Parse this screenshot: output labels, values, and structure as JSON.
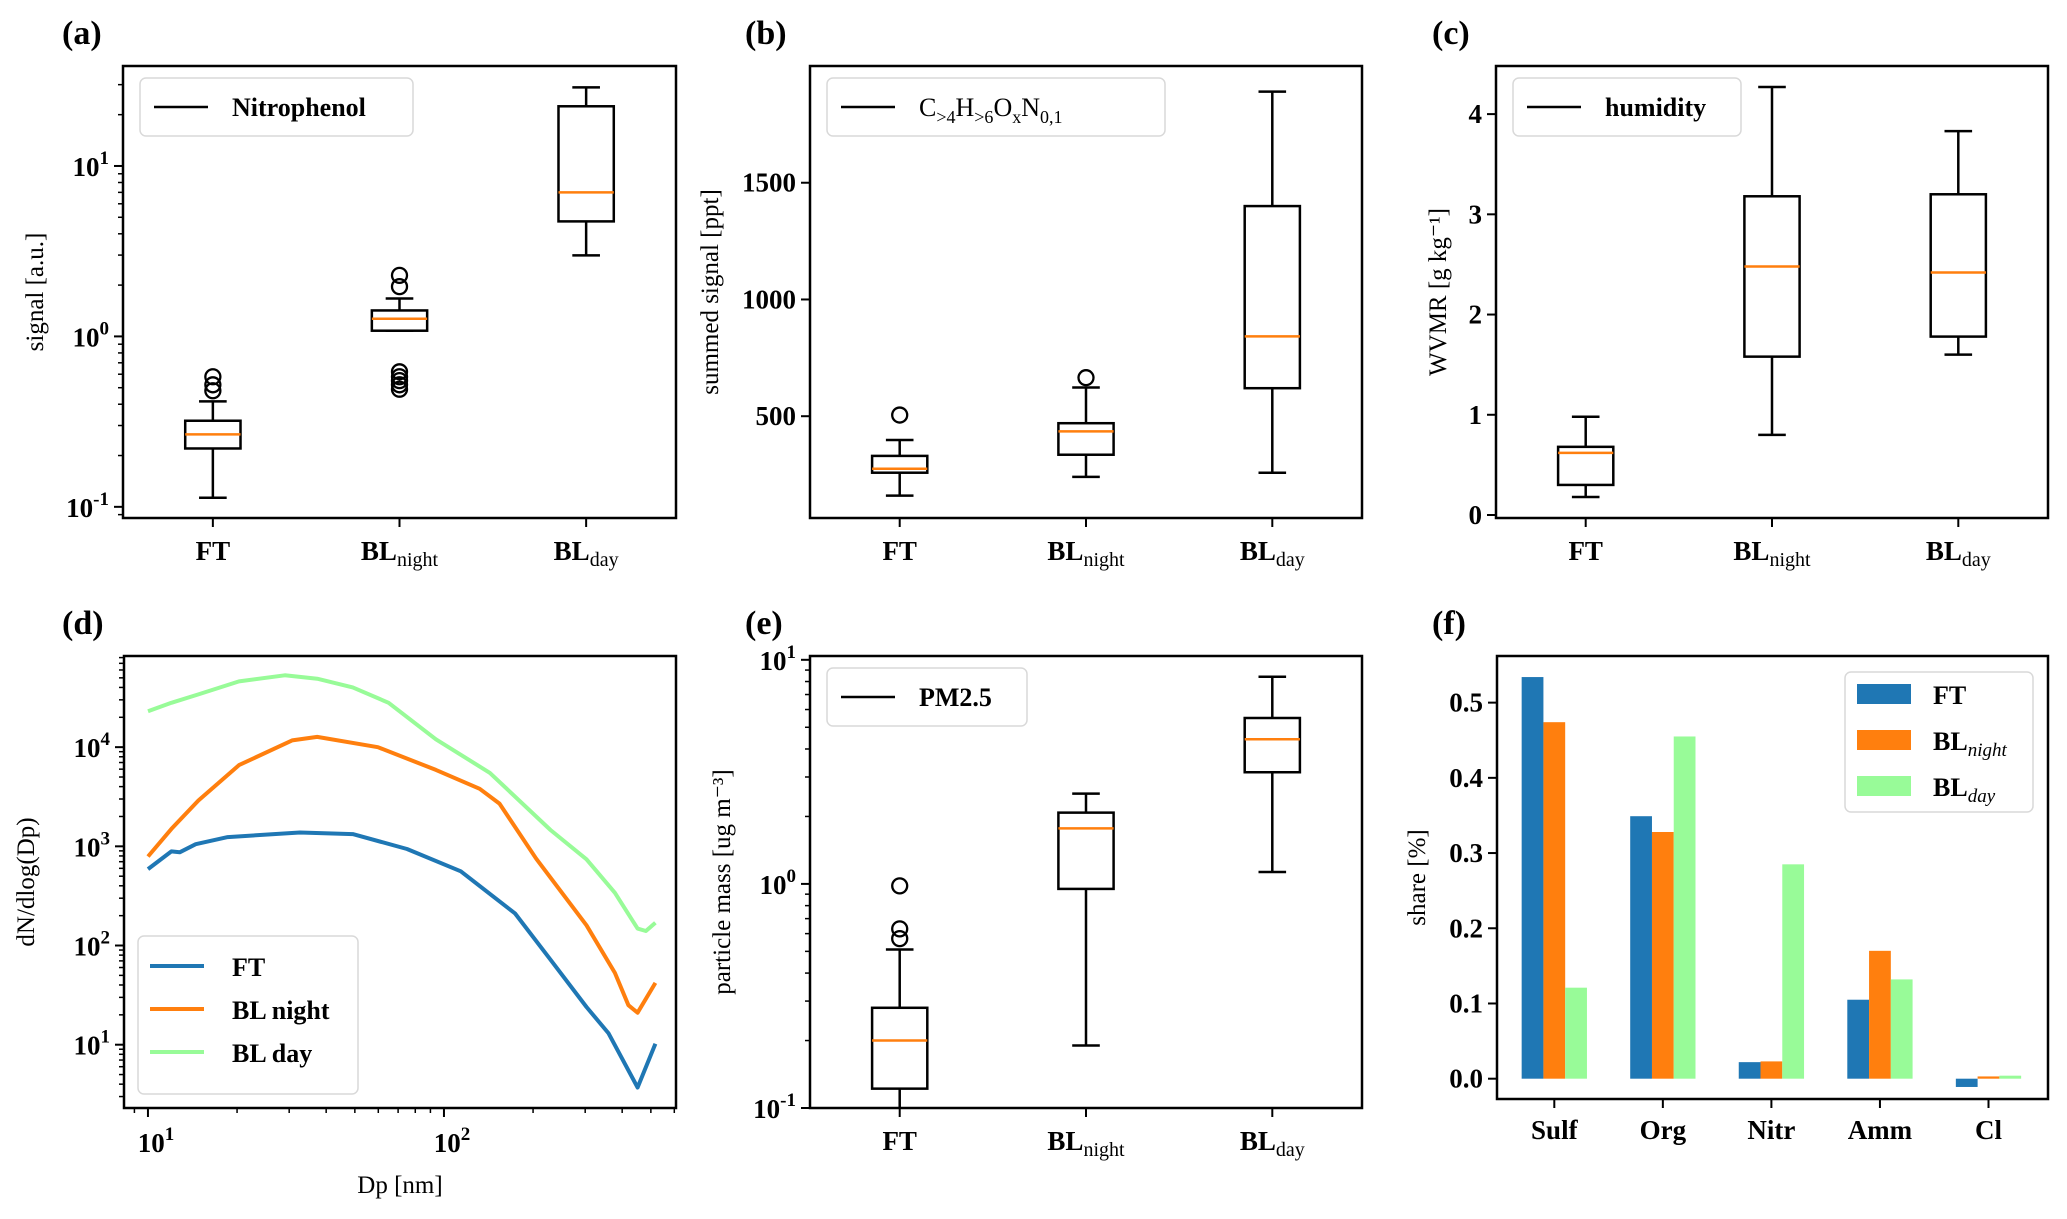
{
  "figure": {
    "panel_labels": [
      "(a)",
      "(b)",
      "(c)",
      "(d)",
      "(e)",
      "(f)"
    ]
  },
  "colors": {
    "FT": "#1f77b4",
    "BL_night": "#ff7f0e",
    "BL_day": "#98fb98",
    "median": "#ff7f0e",
    "box": "#000000"
  },
  "chart_data": [
    {
      "id": "a",
      "type": "box",
      "title": "(a)",
      "ylabel": "signal [a.u.]",
      "yscale": "log",
      "ylim": [
        0.086,
        38.6
      ],
      "yticks": [
        {
          "value": 0.1,
          "base": "10",
          "exp": "-1"
        },
        {
          "value": 1,
          "base": "10",
          "exp": "0"
        },
        {
          "value": 10,
          "base": "10",
          "exp": "1"
        }
      ],
      "categories": [
        {
          "main": "FT",
          "sub": ""
        },
        {
          "main": "BL",
          "sub": "night"
        },
        {
          "main": "BL",
          "sub": "day"
        }
      ],
      "legend": {
        "label": "Nitrophenol",
        "position": "upper-left"
      },
      "boxes": [
        {
          "whislo": 0.113,
          "q1": 0.22,
          "med": 0.266,
          "q3": 0.32,
          "whishi": 0.416,
          "fliers": [
            0.48,
            0.52,
            0.58
          ]
        },
        {
          "whislo": 1.08,
          "q1": 1.08,
          "med": 1.27,
          "q3": 1.42,
          "whishi": 1.67,
          "fliers": [
            1.96,
            2.28,
            0.49,
            0.52,
            0.55,
            0.58,
            0.62
          ]
        },
        {
          "whislo": 2.99,
          "q1": 4.73,
          "med": 7.0,
          "q3": 22.4,
          "whishi": 28.9,
          "fliers": []
        }
      ]
    },
    {
      "id": "b",
      "type": "box",
      "title": "(b)",
      "ylabel": "summed signal [ppt]",
      "yscale": "linear",
      "ylim": [
        64,
        2000
      ],
      "yticks": [
        {
          "value": 500,
          "label": "500"
        },
        {
          "value": 1000,
          "label": "1000"
        },
        {
          "value": 1500,
          "label": "1500"
        }
      ],
      "categories": [
        {
          "main": "FT",
          "sub": ""
        },
        {
          "main": "BL",
          "sub": "night"
        },
        {
          "main": "BL",
          "sub": "day"
        }
      ],
      "legend": {
        "label_parts": [
          {
            "t": "C",
            "sub": ">4"
          },
          {
            "t": "H",
            "sub": ">6"
          },
          {
            "t": "O",
            "sub": "x"
          },
          {
            "t": "N",
            "sub": "0,1"
          }
        ],
        "position": "upper-left"
      },
      "boxes": [
        {
          "whislo": 160,
          "q1": 258,
          "med": 275,
          "q3": 330,
          "whishi": 398,
          "fliers": [
            505
          ]
        },
        {
          "whislo": 240,
          "q1": 335,
          "med": 435,
          "q3": 470,
          "whishi": 623,
          "fliers": [
            665
          ]
        },
        {
          "whislo": 258,
          "q1": 620,
          "med": 842,
          "q3": 1400,
          "whishi": 1890,
          "fliers": []
        }
      ]
    },
    {
      "id": "c",
      "type": "box",
      "title": "(c)",
      "ylabel": "WVMR [g kg⁻¹]",
      "yscale": "linear",
      "ylim": [
        -0.03,
        4.48
      ],
      "yticks": [
        {
          "value": 0,
          "label": "0"
        },
        {
          "value": 1,
          "label": "1"
        },
        {
          "value": 2,
          "label": "2"
        },
        {
          "value": 3,
          "label": "3"
        },
        {
          "value": 4,
          "label": "4"
        }
      ],
      "categories": [
        {
          "main": "FT",
          "sub": ""
        },
        {
          "main": "BL",
          "sub": "night"
        },
        {
          "main": "BL",
          "sub": "day"
        }
      ],
      "legend": {
        "label": "humidity",
        "position": "upper-left"
      },
      "boxes": [
        {
          "whislo": 0.18,
          "q1": 0.3,
          "med": 0.62,
          "q3": 0.68,
          "whishi": 0.98,
          "fliers": []
        },
        {
          "whislo": 0.8,
          "q1": 1.58,
          "med": 2.48,
          "q3": 3.18,
          "whishi": 4.27,
          "fliers": []
        },
        {
          "whislo": 1.6,
          "q1": 1.78,
          "med": 2.42,
          "q3": 3.2,
          "whishi": 3.83,
          "fliers": []
        }
      ]
    },
    {
      "id": "d",
      "type": "line",
      "title": "(d)",
      "xlabel": "Dp [nm]",
      "ylabel": "dN/dlog(Dp)",
      "xscale": "log",
      "yscale": "log",
      "xlim": [
        8.3,
        608
      ],
      "ylim": [
        2.3,
        83000
      ],
      "xticks": [
        {
          "value": 10,
          "base": "10",
          "exp": "1"
        },
        {
          "value": 100,
          "base": "10",
          "exp": "2"
        }
      ],
      "yticks": [
        {
          "value": 10,
          "base": "10",
          "exp": "1"
        },
        {
          "value": 100,
          "base": "10",
          "exp": "2"
        },
        {
          "value": 1000,
          "base": "10",
          "exp": "3"
        },
        {
          "value": 10000,
          "base": "10",
          "exp": "4"
        }
      ],
      "legend": {
        "position": "lower-left"
      },
      "series": [
        {
          "name": "FT",
          "color_key": "FT",
          "x": [
            10.0,
            12.0,
            12.8,
            14.5,
            18.6,
            32.6,
            49.2,
            75,
            114,
            174,
            229,
            303,
            360,
            451,
            518
          ],
          "y": [
            590,
            890,
            870,
            1050,
            1240,
            1380,
            1330,
            940,
            560,
            210,
            72,
            24,
            13,
            3.7,
            10.2
          ]
        },
        {
          "name": "BL night",
          "color_key": "BL_night",
          "x": [
            10.0,
            12.0,
            14.8,
            20.3,
            30.7,
            37.3,
            59.8,
            93.9,
            132,
            154,
            205,
            303,
            378,
            420,
            451,
            518
          ],
          "y": [
            790,
            1500,
            2900,
            6600,
            11700,
            12700,
            10000,
            5900,
            3800,
            2700,
            750,
            160,
            53,
            25,
            21,
            42
          ]
        },
        {
          "name": "BL day",
          "color_key": "BL_day",
          "x": [
            10.0,
            12.0,
            14.8,
            20.3,
            29.0,
            37.3,
            49.2,
            65.0,
            93.9,
            143,
            229,
            303,
            378,
            451,
            481,
            518
          ],
          "y": [
            23000,
            28000,
            34000,
            46000,
            53000,
            49000,
            40000,
            28000,
            12000,
            5500,
            1460,
            740,
            340,
            148,
            140,
            170
          ]
        }
      ]
    },
    {
      "id": "e",
      "type": "box",
      "title": "(e)",
      "ylabel": "particle mass [ug m⁻³]",
      "yscale": "log",
      "ylim": [
        0.1,
        10.4
      ],
      "yticks": [
        {
          "value": 0.1,
          "base": "10",
          "exp": "-1"
        },
        {
          "value": 1,
          "base": "10",
          "exp": "0"
        },
        {
          "value": 10,
          "base": "10",
          "exp": "1"
        }
      ],
      "categories": [
        {
          "main": "FT",
          "sub": ""
        },
        {
          "main": "BL",
          "sub": "night"
        },
        {
          "main": "BL",
          "sub": "day"
        }
      ],
      "legend": {
        "label": "PM2.5",
        "position": "upper-left"
      },
      "boxes": [
        {
          "whislo": 0.1,
          "q1": 0.122,
          "med": 0.2,
          "q3": 0.28,
          "whishi": 0.51,
          "fliers": [
            0.57,
            0.63,
            0.98
          ]
        },
        {
          "whislo": 0.19,
          "q1": 0.95,
          "med": 1.77,
          "q3": 2.08,
          "whishi": 2.53,
          "fliers": []
        },
        {
          "whislo": 1.13,
          "q1": 3.15,
          "med": 4.42,
          "q3": 5.5,
          "whishi": 8.4,
          "fliers": []
        }
      ]
    },
    {
      "id": "f",
      "type": "bar",
      "title": "(f)",
      "ylabel": "share [%]",
      "ylim": [
        -0.027,
        0.562
      ],
      "yticks": [
        {
          "value": 0.0,
          "label": "0.0"
        },
        {
          "value": 0.1,
          "label": "0.1"
        },
        {
          "value": 0.2,
          "label": "0.2"
        },
        {
          "value": 0.3,
          "label": "0.3"
        },
        {
          "value": 0.4,
          "label": "0.4"
        },
        {
          "value": 0.5,
          "label": "0.5"
        }
      ],
      "categories": [
        "Sulf",
        "Org",
        "Nitr",
        "Amm",
        "Cl"
      ],
      "legend": {
        "position": "upper-right"
      },
      "series": [
        {
          "name": "FT",
          "sub": "",
          "color_key": "FT",
          "values": [
            0.534,
            0.349,
            0.022,
            0.105,
            -0.011
          ]
        },
        {
          "name": "BL",
          "sub": "night",
          "color_key": "BL_night",
          "values": [
            0.474,
            0.328,
            0.023,
            0.17,
            0.003
          ]
        },
        {
          "name": "BL",
          "sub": "day",
          "color_key": "BL_day",
          "values": [
            0.121,
            0.455,
            0.285,
            0.132,
            0.004
          ]
        }
      ]
    }
  ]
}
